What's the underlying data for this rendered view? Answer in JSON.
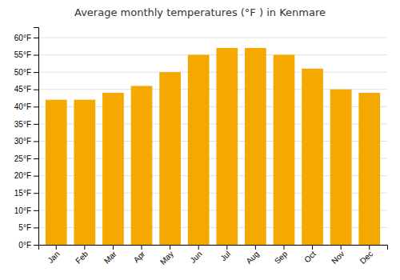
{
  "chart_data": {
    "type": "bar",
    "title": "Average monthly temperatures (°F ) in Kenmare",
    "categories": [
      "Jan",
      "Feb",
      "Mar",
      "Apr",
      "May",
      "Jun",
      "Jul",
      "Aug",
      "Sep",
      "Oct",
      "Nov",
      "Dec"
    ],
    "values": [
      42,
      42,
      44,
      46,
      50,
      55,
      57,
      57,
      55,
      51,
      45,
      44
    ],
    "color": "#F5A800",
    "ylim": [
      0,
      63
    ],
    "yticks": [
      {
        "value": 0,
        "label": "0°F"
      },
      {
        "value": 5,
        "label": "5°F"
      },
      {
        "value": 10,
        "label": "10°F"
      },
      {
        "value": 15,
        "label": "15°F"
      },
      {
        "value": 20,
        "label": "20°F"
      },
      {
        "value": 25,
        "label": "25°F"
      },
      {
        "value": 30,
        "label": "30°F"
      },
      {
        "value": 35,
        "label": "35°F"
      },
      {
        "value": 40,
        "label": "40°F"
      },
      {
        "value": 45,
        "label": "45°F"
      },
      {
        "value": 50,
        "label": "50°F"
      },
      {
        "value": 55,
        "label": "55°F"
      },
      {
        "value": 60,
        "label": "60°F"
      }
    ],
    "grid": true
  }
}
